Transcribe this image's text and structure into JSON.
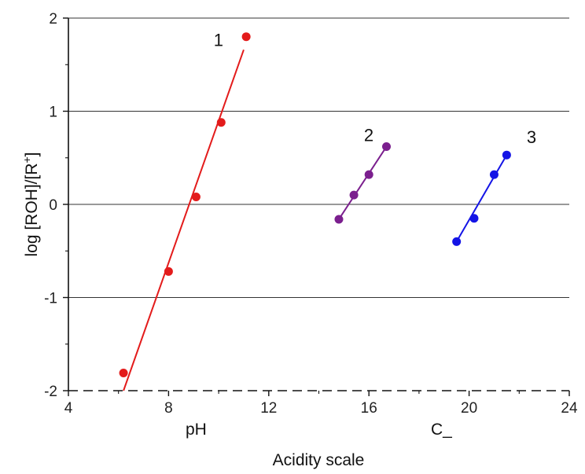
{
  "chart_data": {
    "type": "scatter",
    "title": "",
    "xlabel": "Acidity scale",
    "ylabel_main": "log [ROH]/[R",
    "ylabel_sup": "+",
    "ylabel_end": "]",
    "xlim": [
      4,
      24
    ],
    "ylim": [
      -2,
      2
    ],
    "xticks": [
      4,
      8,
      12,
      16,
      20,
      24
    ],
    "yticks": [
      -2,
      -1,
      0,
      1,
      2
    ],
    "grid": "horizontal",
    "scale_labels": [
      "pH",
      "C_"
    ],
    "series": [
      {
        "name": "1",
        "color": "#e31b1b",
        "points": [
          [
            6.2,
            -1.81
          ],
          [
            8.0,
            -0.72
          ],
          [
            9.1,
            0.08
          ],
          [
            10.1,
            0.88
          ],
          [
            11.1,
            1.8
          ]
        ],
        "fit": [
          [
            6.2,
            -2.0
          ],
          [
            11.0,
            1.66
          ]
        ],
        "label_at": [
          9.8,
          1.7
        ]
      },
      {
        "name": "2",
        "color": "#7b1f8e",
        "points": [
          [
            14.8,
            -0.16
          ],
          [
            15.4,
            0.1
          ],
          [
            16.0,
            0.32
          ],
          [
            16.7,
            0.62
          ]
        ],
        "fit": [
          [
            14.8,
            -0.16
          ],
          [
            16.7,
            0.62
          ]
        ],
        "label_at": [
          15.8,
          0.68
        ]
      },
      {
        "name": "3",
        "color": "#1414e6",
        "points": [
          [
            19.5,
            -0.4
          ],
          [
            20.2,
            -0.15
          ],
          [
            21.0,
            0.32
          ],
          [
            21.5,
            0.53
          ]
        ],
        "fit": [
          [
            19.5,
            -0.4
          ],
          [
            21.5,
            0.53
          ]
        ],
        "label_at": [
          22.3,
          0.66
        ]
      }
    ]
  }
}
